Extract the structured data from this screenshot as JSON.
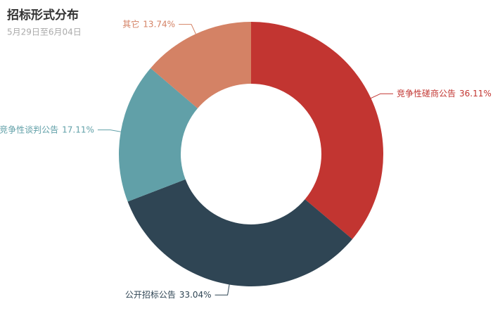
{
  "chart_data": {
    "type": "pie",
    "title": "招标形式分布",
    "subtitle": "5月29日至6月04日",
    "categories": [
      "竞争性磋商公告",
      "公开招标公告",
      "竞争性谈判公告",
      "其它"
    ],
    "values": [
      36.11,
      33.04,
      17.11,
      13.74
    ],
    "value_labels": [
      "36.11%",
      "33.04%",
      "17.11%",
      "13.74%"
    ],
    "colors": [
      "#c23531",
      "#2f4554",
      "#61a0a8",
      "#d48265"
    ]
  }
}
